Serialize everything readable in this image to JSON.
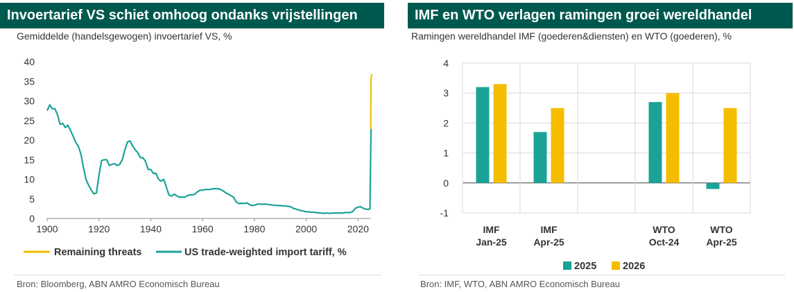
{
  "colors": {
    "banner": "#00594f",
    "teal": "#1aa396",
    "gold": "#f5bd00",
    "grid": "#d9d9d9",
    "axis": "#888888",
    "text": "#333333"
  },
  "left": {
    "title": "Invoertarief VS schiet omhoog ondanks vrijstellingen",
    "subtitle": "Gemiddelde (handelsgewogen) invoertarief VS, %",
    "source": "Bron: Bloomberg, ABN AMRO Economisch Bureau"
  },
  "right": {
    "title": "IMF en WTO verlagen ramingen groei wereldhandel",
    "subtitle": "Ramingen wereldhandel IMF (goederen&diensten) en WTO (goederen), %",
    "source": "Bron: IMF, WTO, ABN AMRO Economisch Bureau"
  },
  "chart_data": [
    {
      "type": "line",
      "xlim": [
        1900,
        2025
      ],
      "ylim": [
        0,
        40
      ],
      "xticks": [
        1900,
        1920,
        1940,
        1960,
        1980,
        2000,
        2020
      ],
      "yticks": [
        0,
        5,
        10,
        15,
        20,
        25,
        30,
        35,
        40
      ],
      "series": [
        {
          "name": "US trade-weighted import tariff, %",
          "color": "#1aa396",
          "points": [
            [
              1900,
              27.5
            ],
            [
              1901,
              29
            ],
            [
              1902,
              28
            ],
            [
              1903,
              28
            ],
            [
              1904,
              26.5
            ],
            [
              1905,
              24
            ],
            [
              1906,
              24.3
            ],
            [
              1907,
              23.2
            ],
            [
              1908,
              23.8
            ],
            [
              1909,
              22.5
            ],
            [
              1910,
              21
            ],
            [
              1911,
              19.5
            ],
            [
              1912,
              18.5
            ],
            [
              1913,
              16.5
            ],
            [
              1914,
              13
            ],
            [
              1915,
              10
            ],
            [
              1916,
              8.5
            ],
            [
              1917,
              7.3
            ],
            [
              1918,
              6.3
            ],
            [
              1919,
              6.5
            ],
            [
              1920,
              11
            ],
            [
              1921,
              14.8
            ],
            [
              1922,
              15
            ],
            [
              1923,
              15
            ],
            [
              1924,
              13.5
            ],
            [
              1925,
              13.8
            ],
            [
              1926,
              14
            ],
            [
              1927,
              13.5
            ],
            [
              1928,
              13.8
            ],
            [
              1929,
              15
            ],
            [
              1930,
              17.5
            ],
            [
              1931,
              19.5
            ],
            [
              1932,
              19.8
            ],
            [
              1933,
              18.5
            ],
            [
              1934,
              17.5
            ],
            [
              1935,
              16.8
            ],
            [
              1936,
              15.5
            ],
            [
              1937,
              15.5
            ],
            [
              1938,
              14.5
            ],
            [
              1939,
              12.5
            ],
            [
              1940,
              12.5
            ],
            [
              1941,
              11.5
            ],
            [
              1942,
              11.5
            ],
            [
              1943,
              10
            ],
            [
              1944,
              9.5
            ],
            [
              1945,
              10
            ],
            [
              1946,
              8
            ],
            [
              1947,
              6
            ],
            [
              1948,
              5.7
            ],
            [
              1949,
              6.2
            ],
            [
              1950,
              5.8
            ],
            [
              1951,
              5.4
            ],
            [
              1952,
              5.5
            ],
            [
              1953,
              5.4
            ],
            [
              1954,
              5.8
            ],
            [
              1955,
              6
            ],
            [
              1956,
              6
            ],
            [
              1957,
              6.2
            ],
            [
              1958,
              6.8
            ],
            [
              1959,
              7.2
            ],
            [
              1960,
              7.2
            ],
            [
              1961,
              7.4
            ],
            [
              1962,
              7.4
            ],
            [
              1963,
              7.4
            ],
            [
              1964,
              7.6
            ],
            [
              1965,
              7.6
            ],
            [
              1966,
              7.6
            ],
            [
              1967,
              7.4
            ],
            [
              1968,
              7
            ],
            [
              1969,
              6.5
            ],
            [
              1970,
              6.2
            ],
            [
              1971,
              5.8
            ],
            [
              1972,
              5.4
            ],
            [
              1973,
              4.2
            ],
            [
              1974,
              3.8
            ],
            [
              1975,
              3.9
            ],
            [
              1976,
              3.8
            ],
            [
              1977,
              4
            ],
            [
              1978,
              3.6
            ],
            [
              1979,
              3.3
            ],
            [
              1980,
              3.4
            ],
            [
              1981,
              3.6
            ],
            [
              1982,
              3.7
            ],
            [
              1983,
              3.6
            ],
            [
              1984,
              3.7
            ],
            [
              1985,
              3.6
            ],
            [
              1986,
              3.5
            ],
            [
              1987,
              3.4
            ],
            [
              1988,
              3.4
            ],
            [
              1989,
              3.3
            ],
            [
              1990,
              3.3
            ],
            [
              1991,
              3.2
            ],
            [
              1992,
              3.2
            ],
            [
              1993,
              3.1
            ],
            [
              1994,
              3
            ],
            [
              1995,
              2.6
            ],
            [
              1996,
              2.4
            ],
            [
              1997,
              2.2
            ],
            [
              1998,
              2
            ],
            [
              1999,
              1.9
            ],
            [
              2000,
              1.7
            ],
            [
              2001,
              1.7
            ],
            [
              2002,
              1.6
            ],
            [
              2003,
              1.6
            ],
            [
              2004,
              1.5
            ],
            [
              2005,
              1.4
            ],
            [
              2006,
              1.4
            ],
            [
              2007,
              1.3
            ],
            [
              2008,
              1.4
            ],
            [
              2009,
              1.3
            ],
            [
              2010,
              1.4
            ],
            [
              2011,
              1.4
            ],
            [
              2012,
              1.4
            ],
            [
              2013,
              1.4
            ],
            [
              2014,
              1.4
            ],
            [
              2015,
              1.5
            ],
            [
              2016,
              1.5
            ],
            [
              2017,
              1.5
            ],
            [
              2018,
              1.8
            ],
            [
              2019,
              2.6
            ],
            [
              2020,
              2.9
            ],
            [
              2021,
              3
            ],
            [
              2022,
              2.6
            ],
            [
              2023,
              2.4
            ],
            [
              2024,
              2.3
            ],
            [
              2024.6,
              2.5
            ],
            [
              2025,
              22.6
            ],
            [
              2025.3,
              22.8
            ]
          ]
        },
        {
          "name": "Remaining threats",
          "color": "#f5bd00",
          "points": [
            [
              2024.9,
              22.8
            ],
            [
              2025,
              36
            ],
            [
              2025.3,
              36.8
            ]
          ]
        }
      ],
      "legend": [
        "Remaining threats",
        "US trade-weighted import tariff, %"
      ]
    },
    {
      "type": "bar",
      "categories": [
        [
          "IMF",
          "Jan-25"
        ],
        [
          "IMF",
          "Apr-25"
        ],
        [
          "",
          ""
        ],
        [
          "WTO",
          "Oct-24"
        ],
        [
          "WTO",
          "Apr-25"
        ]
      ],
      "series": [
        {
          "name": "2025",
          "color": "#1aa396",
          "values": [
            3.2,
            1.7,
            null,
            2.7,
            -0.2
          ]
        },
        {
          "name": "2026",
          "color": "#f5bd00",
          "values": [
            3.3,
            2.5,
            null,
            3.0,
            2.5
          ]
        }
      ],
      "ylim": [
        -1,
        4
      ],
      "yticks": [
        -1,
        0,
        1,
        2,
        3,
        4
      ]
    }
  ]
}
